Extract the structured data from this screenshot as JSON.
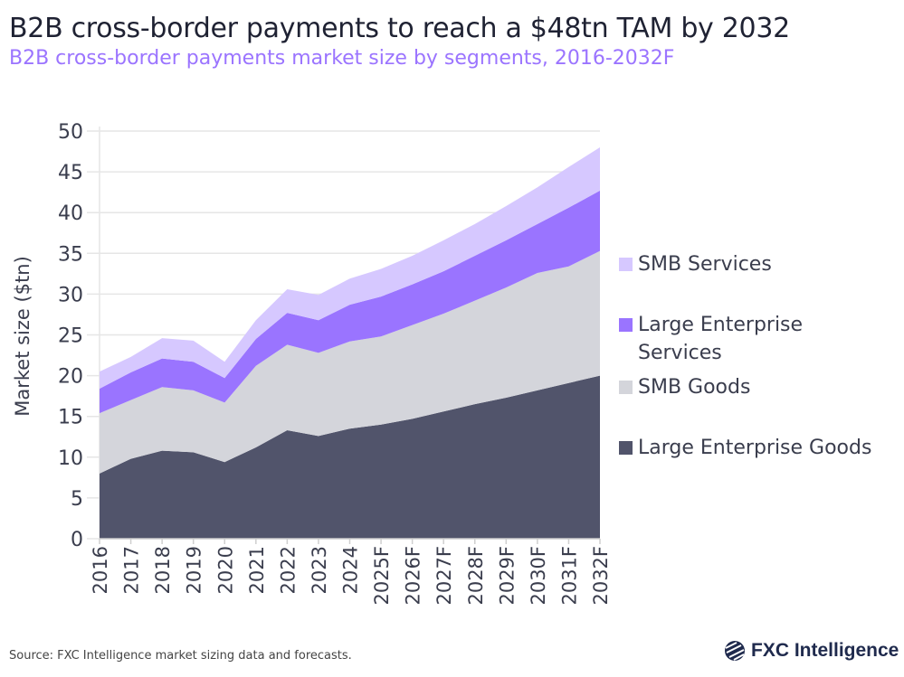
{
  "title": "B2B cross-border payments to reach a $48tn TAM by 2032",
  "subtitle": "B2B cross-border payments market size by segments, 2016-2032F",
  "source": "Source: FXC Intelligence market sizing data and forecasts.",
  "logo": "FXC Intelligence",
  "chart_data": {
    "type": "area",
    "stacked": true,
    "ylabel": "Market size ($tn)",
    "ylim": [
      0,
      50
    ],
    "yticks": [
      0,
      5,
      10,
      15,
      20,
      25,
      30,
      35,
      40,
      45,
      50
    ],
    "grid": true,
    "legend_position": "right",
    "categories": [
      "2016",
      "2017",
      "2018",
      "2019",
      "2020",
      "2021",
      "2022",
      "2023",
      "2024",
      "2025F",
      "2026F",
      "2027F",
      "2028F",
      "2029F",
      "2030F",
      "2031F",
      "2032F"
    ],
    "series": [
      {
        "name": "Large Enterprise Goods",
        "color": "#51546b",
        "values": [
          8.0,
          9.8,
          10.8,
          10.6,
          9.4,
          11.2,
          13.3,
          12.6,
          13.5,
          14.0,
          14.7,
          15.6,
          16.5,
          17.3,
          18.2,
          19.1,
          20.0
        ]
      },
      {
        "name": "SMB Goods",
        "color": "#d4d5db",
        "values": [
          7.4,
          7.2,
          7.8,
          7.6,
          7.3,
          10.0,
          10.5,
          10.2,
          10.7,
          10.8,
          11.5,
          12.0,
          12.7,
          13.5,
          14.4,
          14.3,
          15.3
        ]
      },
      {
        "name": "Large Enterprise Services",
        "color": "#9a74ff",
        "values": [
          3.0,
          3.4,
          3.5,
          3.5,
          3.0,
          3.3,
          3.9,
          4.0,
          4.5,
          4.9,
          5.0,
          5.2,
          5.5,
          5.8,
          6.0,
          7.2,
          7.4
        ]
      },
      {
        "name": "SMB Services",
        "color": "#d6c8ff",
        "values": [
          2.1,
          1.9,
          2.5,
          2.6,
          2.0,
          2.3,
          2.9,
          3.1,
          3.2,
          3.4,
          3.5,
          3.8,
          3.9,
          4.2,
          4.5,
          5.0,
          5.3
        ]
      }
    ],
    "legend": [
      {
        "label_lines": [
          "SMB Services"
        ],
        "color": "#d6c8ff"
      },
      {
        "label_lines": [
          "Large Enterprise",
          "Services"
        ],
        "color": "#9a74ff"
      },
      {
        "label_lines": [
          "SMB Goods"
        ],
        "color": "#d4d5db"
      },
      {
        "label_lines": [
          "Large Enterprise Goods"
        ],
        "color": "#51546b"
      }
    ]
  }
}
